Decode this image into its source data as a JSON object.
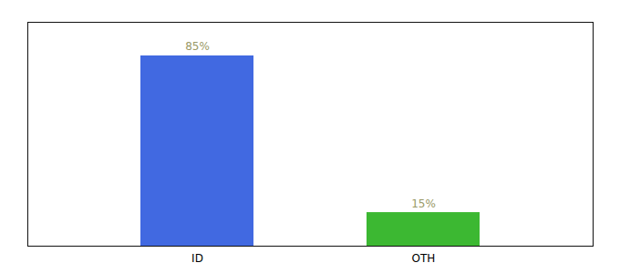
{
  "chart_data": {
    "type": "bar",
    "categories": [
      "ID",
      "OTH"
    ],
    "values": [
      85,
      15
    ],
    "value_labels": [
      "85%",
      "15%"
    ],
    "colors": [
      "#4169e1",
      "#3cb832"
    ],
    "ylim": [
      0,
      100
    ],
    "grid": false,
    "data_labels": true,
    "tick_labels": "x"
  }
}
